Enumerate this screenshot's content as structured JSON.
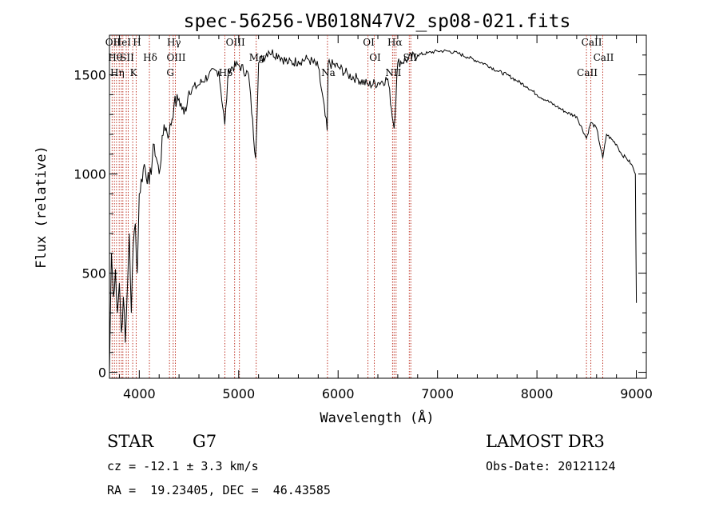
{
  "chart_data": {
    "type": "line",
    "title": "spec-56256-VB018N47V2_sp08-021.fits",
    "xlabel": "Wavelength (Å)",
    "ylabel": "Flux (relative)",
    "xlim": [
      3700,
      9100
    ],
    "ylim": [
      -30,
      1700
    ],
    "x_ticks": [
      4000,
      5000,
      6000,
      7000,
      8000,
      9000
    ],
    "x_tick_labels": [
      "4000",
      "5000",
      "6000",
      "7000",
      "8000",
      "9000"
    ],
    "y_ticks": [
      0,
      500,
      1000,
      1500
    ],
    "y_tick_labels": [
      "0",
      "500",
      "1000",
      "1500"
    ],
    "grid": false,
    "series": [
      {
        "name": "spectrum",
        "x": [
          3700,
          3720,
          3740,
          3760,
          3780,
          3800,
          3820,
          3840,
          3860,
          3880,
          3900,
          3920,
          3940,
          3960,
          3980,
          4000,
          4050,
          4100,
          4150,
          4200,
          4250,
          4300,
          4350,
          4400,
          4450,
          4500,
          4600,
          4700,
          4800,
          4860,
          4900,
          5000,
          5100,
          5170,
          5200,
          5300,
          5400,
          5500,
          5600,
          5700,
          5800,
          5890,
          5900,
          6000,
          6100,
          6200,
          6300,
          6400,
          6500,
          6563,
          6600,
          6700,
          6800,
          6900,
          7000,
          7100,
          7200,
          7300,
          7400,
          7500,
          7600,
          7700,
          7800,
          7900,
          8000,
          8100,
          8200,
          8300,
          8400,
          8498,
          8542,
          8600,
          8662,
          8700,
          8800,
          8850,
          8900,
          8950,
          8990,
          9000
        ],
        "values": [
          0,
          600,
          380,
          520,
          300,
          450,
          200,
          380,
          150,
          420,
          700,
          300,
          650,
          750,
          500,
          900,
          1050,
          950,
          1150,
          1000,
          1250,
          1200,
          1350,
          1380,
          1300,
          1420,
          1450,
          1500,
          1520,
          1250,
          1530,
          1550,
          1500,
          1080,
          1560,
          1620,
          1600,
          1560,
          1570,
          1580,
          1540,
          1220,
          1560,
          1540,
          1500,
          1480,
          1450,
          1460,
          1480,
          1230,
          1560,
          1580,
          1600,
          1610,
          1620,
          1620,
          1610,
          1590,
          1570,
          1550,
          1520,
          1500,
          1470,
          1440,
          1400,
          1370,
          1340,
          1310,
          1290,
          1180,
          1260,
          1230,
          1080,
          1200,
          1150,
          1100,
          1080,
          1050,
          1000,
          350
        ]
      }
    ],
    "lines": [
      {
        "x": 3727,
        "label": "OII"
      },
      {
        "x": 3750,
        "label": "Hθ"
      },
      {
        "x": 3771,
        "label": "Hη"
      },
      {
        "x": 3798,
        "label": ""
      },
      {
        "x": 3820,
        "label": "HeI"
      },
      {
        "x": 3835,
        "label": ""
      },
      {
        "x": 3869,
        "label": "SII"
      },
      {
        "x": 3889,
        "label": ""
      },
      {
        "x": 3934,
        "label": "K"
      },
      {
        "x": 3969,
        "label": "H"
      },
      {
        "x": 4102,
        "label": "Hδ"
      },
      {
        "x": 4304,
        "label": "G"
      },
      {
        "x": 4341,
        "label": "Hγ"
      },
      {
        "x": 4363,
        "label": "OIII"
      },
      {
        "x": 4861,
        "label": "Hβ"
      },
      {
        "x": 4959,
        "label": "OIII"
      },
      {
        "x": 5007,
        "label": ""
      },
      {
        "x": 5176,
        "label": "Mg"
      },
      {
        "x": 5893,
        "label": "Na"
      },
      {
        "x": 6300,
        "label": "OI"
      },
      {
        "x": 6364,
        "label": "OI"
      },
      {
        "x": 6548,
        "label": "NII"
      },
      {
        "x": 6563,
        "label": "Hα"
      },
      {
        "x": 6583,
        "label": ""
      },
      {
        "x": 6716,
        "label": "SII"
      },
      {
        "x": 6731,
        "label": ""
      },
      {
        "x": 8498,
        "label": "CaII"
      },
      {
        "x": 8542,
        "label": "CaII"
      },
      {
        "x": 8662,
        "label": "CaII"
      }
    ]
  },
  "info": {
    "object_class": "STAR",
    "subclass": "G7",
    "survey": "LAMOST DR3",
    "redshift_text": "cz = -12.1 ± 3.3 km/s",
    "obs_date_text": "Obs-Date: 20121124",
    "coords_text": "RA =  19.23405, DEC =  46.43585"
  }
}
